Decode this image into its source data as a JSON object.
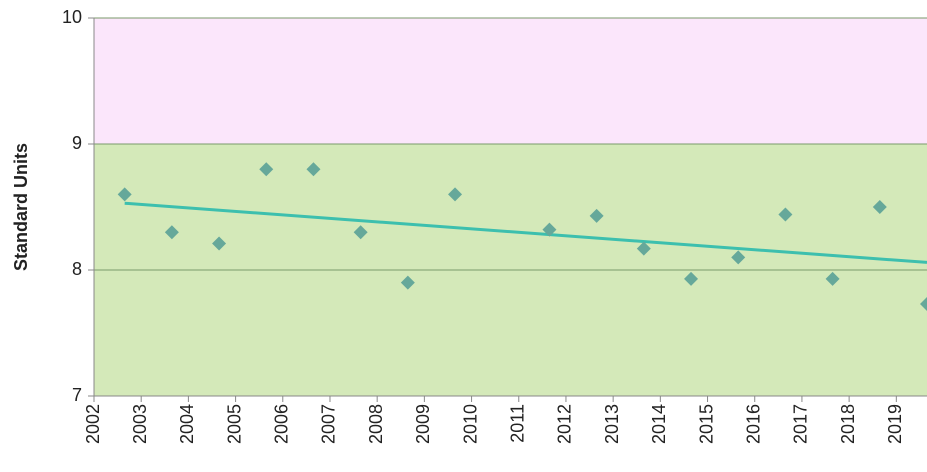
{
  "chart_data": {
    "type": "scatter",
    "y_label": "Standard Units",
    "xlim": [
      2002,
      2019.65
    ],
    "xticks": [
      2002,
      2003,
      2004,
      2005,
      2006,
      2007,
      2008,
      2009,
      2010,
      2011,
      2012,
      2013,
      2014,
      2015,
      2016,
      2017,
      2018,
      2019
    ],
    "ylim": [
      7,
      10
    ],
    "yticks": [
      7,
      8,
      9,
      10
    ],
    "grid": true,
    "bands": [
      {
        "from": 7,
        "to": 9,
        "color": "#d4e9b9"
      },
      {
        "from": 9,
        "to": 10,
        "color": "#fbe6fb"
      }
    ],
    "series": [
      {
        "color": "#66a89a",
        "x": [
          2002.65,
          2003.65,
          2004.65,
          2005.65,
          2006.65,
          2007.65,
          2008.65,
          2009.65,
          2011.65,
          2012.65,
          2013.65,
          2014.65,
          2015.65,
          2016.65,
          2017.65,
          2018.65,
          2019.65
        ],
        "values": [
          8.6,
          8.3,
          8.21,
          8.8,
          8.8,
          8.3,
          7.9,
          8.6,
          8.32,
          8.43,
          8.17,
          7.93,
          8.1,
          8.44,
          7.93,
          8.5,
          7.73
        ]
      }
    ],
    "trendline": {
      "color": "#3dbfae",
      "x": [
        2002.65,
        2019.65
      ],
      "values": [
        8.53,
        8.06
      ]
    }
  }
}
